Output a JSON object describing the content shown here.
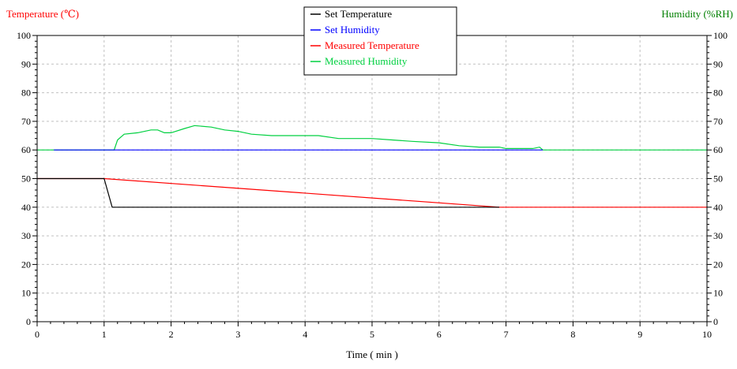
{
  "chart_data": {
    "type": "line",
    "y_left_label": "Temperature (℃)",
    "y_right_label": "Humidity (%RH)",
    "xlabel": "Time ( min )",
    "xlim": [
      0,
      10
    ],
    "ylim_left": [
      0,
      100
    ],
    "ylim_right": [
      0,
      100
    ],
    "x_ticks": [
      "0",
      "1",
      "2",
      "3",
      "4",
      "5",
      "6",
      "7",
      "8",
      "9",
      "10"
    ],
    "y_ticks": [
      "0",
      "10",
      "20",
      "30",
      "40",
      "50",
      "60",
      "70",
      "80",
      "90",
      "100"
    ],
    "grid": true,
    "legend_position": "top-center",
    "series": [
      {
        "name": "Set Temperature",
        "axis": "left",
        "color": "#000000",
        "x": [
          0,
          1.0,
          1.12,
          6.9
        ],
        "y": [
          50,
          50,
          40,
          40
        ]
      },
      {
        "name": "Set Humidity",
        "axis": "right",
        "color": "#0000ff",
        "x": [
          0.25,
          7.55
        ],
        "y": [
          60,
          60
        ]
      },
      {
        "name": "Measured Temperature",
        "axis": "left",
        "color": "#ff0000",
        "x": [
          0,
          1.0,
          6.9,
          10
        ],
        "y": [
          50,
          50,
          40,
          40
        ]
      },
      {
        "name": "Measured Humidity",
        "axis": "right",
        "color": "#00d040",
        "x": [
          0,
          1.15,
          1.2,
          1.3,
          1.5,
          1.7,
          1.8,
          1.9,
          2.0,
          2.2,
          2.35,
          2.6,
          2.8,
          3.0,
          3.2,
          3.5,
          4.0,
          4.2,
          4.5,
          5.0,
          5.3,
          5.6,
          6.0,
          6.3,
          6.6,
          6.9,
          7.0,
          7.2,
          7.4,
          7.5,
          7.55,
          10
        ],
        "y": [
          60,
          60,
          63.5,
          65.5,
          66,
          67,
          67,
          66,
          66,
          67.5,
          68.5,
          68,
          67,
          66.5,
          65.5,
          65,
          65,
          65,
          64,
          64,
          63.5,
          63,
          62.5,
          61.5,
          61,
          61,
          60.5,
          60.5,
          60.5,
          61,
          60,
          60
        ]
      }
    ]
  }
}
